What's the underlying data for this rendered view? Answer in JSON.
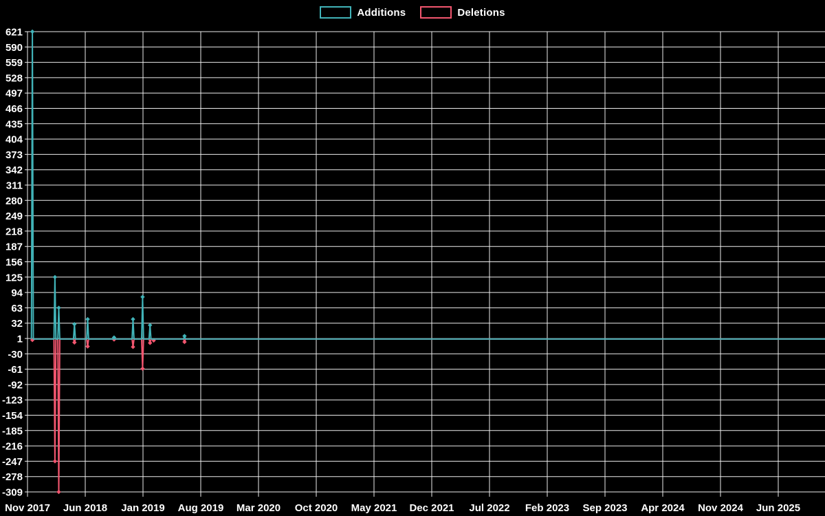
{
  "page": {
    "background": "#000000"
  },
  "legend": {
    "items": [
      {
        "label": "Additions",
        "color": "#41b3b8"
      },
      {
        "label": "Deletions",
        "color": "#f2566f"
      }
    ]
  },
  "chart_data": {
    "type": "line",
    "legend": [
      "Additions",
      "Deletions"
    ],
    "legend_position": "top-center",
    "grid": true,
    "background": "#000000",
    "gridline_color": "#ededed",
    "x_tick_labels": [
      "Nov 2017",
      "Jun 2018",
      "Jan 2019",
      "Aug 2019",
      "Mar 2020",
      "Oct 2020",
      "May 2021",
      "Dec 2021",
      "Jul 2022",
      "Feb 2023",
      "Sep 2023",
      "Apr 2024",
      "Nov 2024",
      "Jun 2025"
    ],
    "y_tick_labels": [
      621,
      590,
      559,
      528,
      497,
      466,
      435,
      404,
      373,
      342,
      311,
      280,
      249,
      218,
      187,
      156,
      125,
      94,
      63,
      32,
      1,
      -30,
      -61,
      -92,
      -123,
      -154,
      -185,
      -216,
      -247,
      -278,
      -309
    ],
    "y_axis": {
      "min": -309,
      "max": 621,
      "step": 31
    },
    "x_axis": {
      "start_label": "Nov 2017",
      "end_label": "Jun 2025",
      "months_per_tick": 7
    },
    "x": [
      "2017-11-19",
      "2018-02-11",
      "2018-02-25",
      "2018-04-22",
      "2018-06-10",
      "2018-09-16",
      "2018-11-25",
      "2018-12-30",
      "2019-01-27",
      "2019-02-10",
      "2019-06-02"
    ],
    "series": [
      {
        "name": "Additions",
        "color": "#41b3b8",
        "values": [
          621,
          125,
          63,
          30,
          40,
          3,
          40,
          85,
          28,
          0,
          6
        ]
      },
      {
        "name": "Deletions",
        "color": "#f2566f",
        "values": [
          -2,
          -247,
          -309,
          -7,
          -15,
          -1,
          -16,
          -60,
          -8,
          -3,
          -6
        ]
      }
    ],
    "baseline_value": 0,
    "note_flat_after": "2019-06-02"
  }
}
